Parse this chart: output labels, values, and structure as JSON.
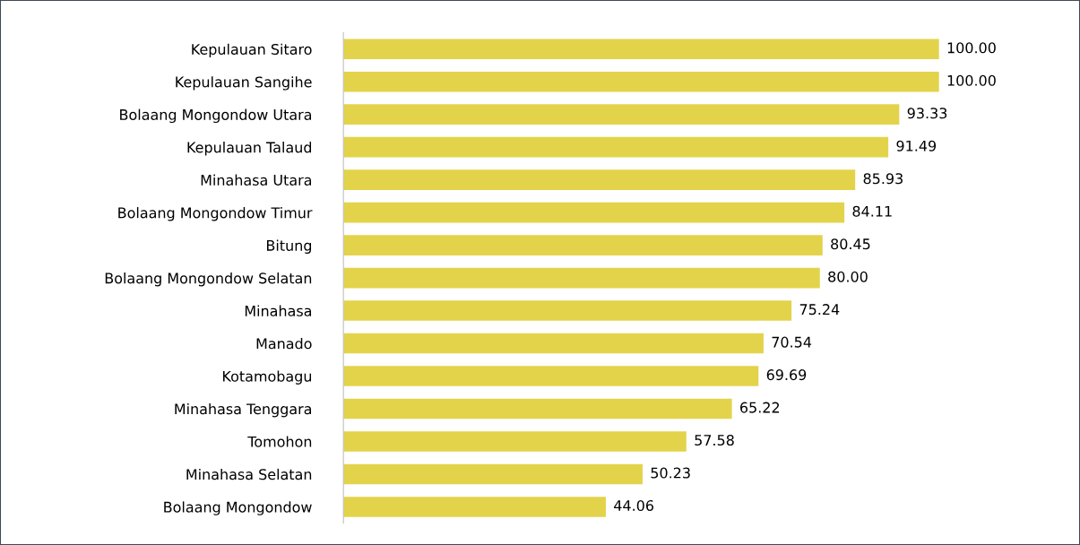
{
  "chart_data": {
    "type": "bar",
    "orientation": "horizontal",
    "data_labels": true,
    "color": "#e3d34b",
    "categories": [
      "Kepulauan Sitaro",
      "Kepulauan Sangihe",
      "Bolaang Mongondow Utara",
      "Kepulauan Talaud",
      "Minahasa Utara",
      "Bolaang Mongondow Timur",
      "Bitung",
      "Bolaang Mongondow Selatan",
      "Minahasa",
      "Manado",
      "Kotamobagu",
      "Minahasa Tenggara",
      "Tomohon",
      "Minahasa Selatan",
      "Bolaang Mongondow"
    ],
    "values": [
      100.0,
      100.0,
      93.33,
      91.49,
      85.93,
      84.11,
      80.45,
      80.0,
      75.24,
      70.54,
      69.69,
      65.22,
      57.58,
      50.23,
      44.06
    ],
    "value_labels": [
      "100.00",
      "100.00",
      "93.33",
      "91.49",
      "85.93",
      "84.11",
      "80.45",
      "80.00",
      "75.24",
      "70.54",
      "69.69",
      "65.22",
      "57.58",
      "50.23",
      "44.06"
    ]
  }
}
